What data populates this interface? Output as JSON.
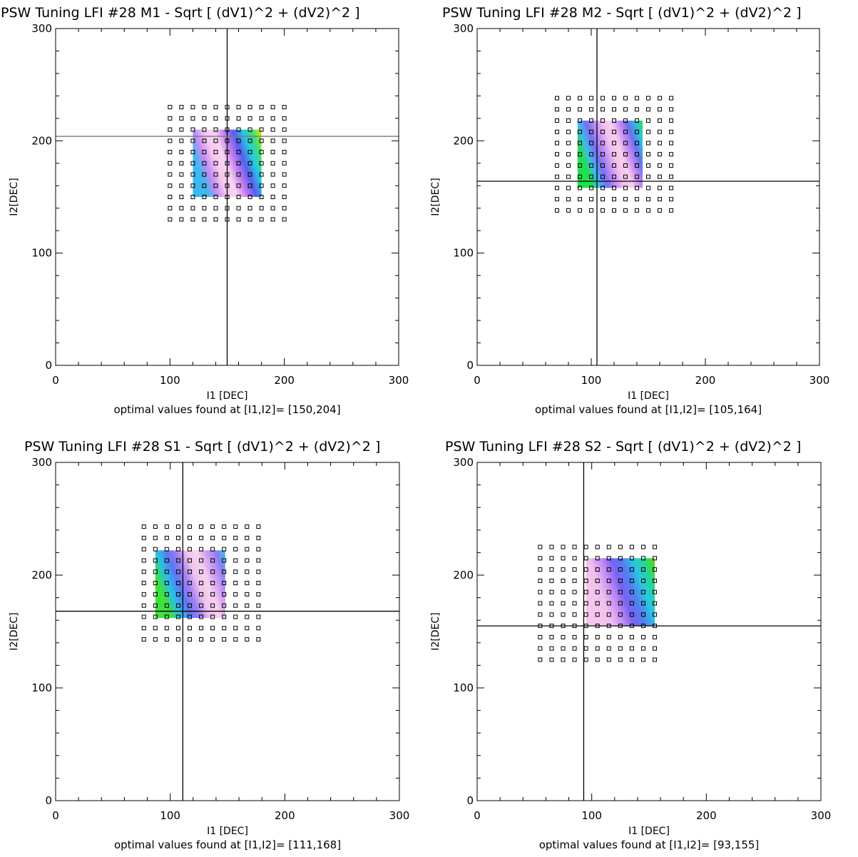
{
  "chart_data": [
    {
      "type": "heatmap",
      "title": "PSW Tuning LFI #28 M1 - Sqrt [ (dV1)^2 + (dV2)^2 ]",
      "xlabel": "I1 [DEC]",
      "ylabel": "I2[DEC]",
      "xlim": [
        0,
        300
      ],
      "ylim": [
        0,
        300
      ],
      "xticks": [
        0,
        100,
        200,
        300
      ],
      "yticks": [
        0,
        100,
        200,
        300
      ],
      "grid_points": {
        "x_start": 100,
        "x_step": 10,
        "x_count": 11,
        "y_start": 130,
        "y_step": 10,
        "y_count": 11
      },
      "heatmap_region": {
        "x": [
          120,
          180
        ],
        "y": [
          150,
          210
        ]
      },
      "optimal": {
        "I1": 150,
        "I2": 204
      },
      "caption": "optimal values found at [I1,I2]= [150,204]"
    },
    {
      "type": "heatmap",
      "title": "PSW Tuning LFI #28 M2 - Sqrt [ (dV1)^2 + (dV2)^2 ]",
      "xlabel": "I1 [DEC]",
      "ylabel": "I2[DEC]",
      "xlim": [
        0,
        300
      ],
      "ylim": [
        0,
        300
      ],
      "xticks": [
        0,
        100,
        200,
        300
      ],
      "yticks": [
        0,
        100,
        200,
        300
      ],
      "grid_points": {
        "x_start": 70,
        "x_step": 10,
        "x_count": 11,
        "y_start": 138,
        "y_step": 10,
        "y_count": 11
      },
      "heatmap_region": {
        "x": [
          88,
          145
        ],
        "y": [
          158,
          218
        ]
      },
      "optimal": {
        "I1": 105,
        "I2": 164
      },
      "caption": "optimal values found at [I1,I2]= [105,164]"
    },
    {
      "type": "heatmap",
      "title": "PSW Tuning LFI #28 S1 - Sqrt [ (dV1)^2 + (dV2)^2 ]",
      "xlabel": "I1 [DEC]",
      "ylabel": "I2[DEC]",
      "xlim": [
        0,
        300
      ],
      "ylim": [
        0,
        300
      ],
      "xticks": [
        0,
        100,
        200,
        300
      ],
      "yticks": [
        0,
        100,
        200,
        300
      ],
      "grid_points": {
        "x_start": 77,
        "x_step": 10,
        "x_count": 11,
        "y_start": 143,
        "y_step": 10,
        "y_count": 11
      },
      "heatmap_region": {
        "x": [
          87,
          148
        ],
        "y": [
          162,
          222
        ]
      },
      "optimal": {
        "I1": 111,
        "I2": 168
      },
      "caption": "optimal values found at [I1,I2]= [111,168]"
    },
    {
      "type": "heatmap",
      "title": "PSW Tuning LFI #28 S2 - Sqrt [ (dV1)^2 + (dV2)^2 ]",
      "xlabel": "I1 [DEC]",
      "ylabel": "I2[DEC]",
      "xlim": [
        0,
        300
      ],
      "ylim": [
        0,
        300
      ],
      "xticks": [
        0,
        100,
        200,
        300
      ],
      "yticks": [
        0,
        100,
        200,
        300
      ],
      "grid_points": {
        "x_start": 55,
        "x_step": 10,
        "x_count": 11,
        "y_start": 125,
        "y_step": 10,
        "y_count": 11
      },
      "heatmap_region": {
        "x": [
          95,
          155
        ],
        "y": [
          155,
          215
        ]
      },
      "optimal": {
        "I1": 93,
        "I2": 155
      },
      "caption": "optimal values found at [I1,I2]= [93,155]"
    }
  ]
}
